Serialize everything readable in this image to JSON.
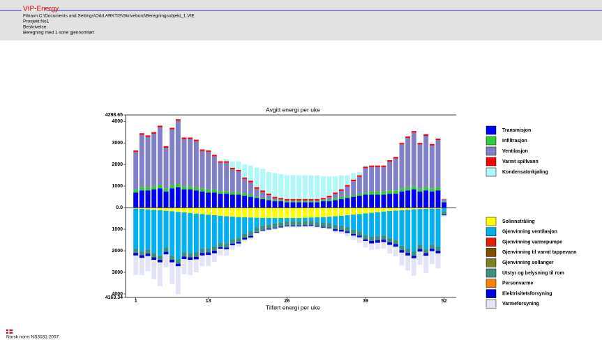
{
  "header": {
    "logo": "VIP-Energy",
    "lines": [
      "Filnavn:C:\\Documents and Settings\\Odd.ARKTIS\\Skrivebord\\Beregningsobjekt_1.VIE",
      "Prosjekt:No1",
      "Beskrivelse:",
      "Beregning med 1 sone gjennomført"
    ]
  },
  "chart_data": {
    "type": "bar",
    "title": "Avgitt energi per uke",
    "x_label": "Tilført energi per uke",
    "x": [
      1,
      2,
      3,
      4,
      5,
      6,
      7,
      8,
      9,
      10,
      11,
      12,
      13,
      14,
      15,
      16,
      17,
      18,
      19,
      20,
      21,
      22,
      23,
      24,
      25,
      26,
      27,
      28,
      29,
      30,
      31,
      32,
      33,
      34,
      35,
      36,
      37,
      38,
      39,
      40,
      41,
      42,
      43,
      44,
      45,
      46,
      47,
      48,
      49,
      50,
      51,
      52
    ],
    "xlim": [
      0,
      54
    ],
    "xticks": [
      1,
      13,
      26,
      39,
      52
    ],
    "ylim": [
      -4163.34,
      4298.65
    ],
    "yticks": [
      4298.65,
      4000,
      3000,
      2000,
      1000,
      {
        "value": 0,
        "label": "0.0"
      },
      {
        "value": -1000,
        "label": "1000"
      },
      {
        "value": -2000,
        "label": "2000"
      },
      {
        "value": -3000,
        "label": "3000"
      },
      {
        "value": -4000,
        "label": "4000"
      },
      {
        "value": -4163.34,
        "label": "4163.34"
      }
    ],
    "series": [
      {
        "name": "Transmisjon",
        "color": "#0000ff",
        "stack": "above",
        "values": [
          700,
          800,
          800,
          850,
          900,
          750,
          900,
          950,
          850,
          850,
          800,
          750,
          700,
          700,
          650,
          650,
          600,
          600,
          550,
          500,
          450,
          400,
          350,
          300,
          300,
          250,
          250,
          250,
          250,
          250,
          250,
          300,
          300,
          350,
          400,
          450,
          500,
          550,
          600,
          600,
          600,
          600,
          650,
          650,
          750,
          800,
          850,
          750,
          800,
          750,
          800,
          250
        ]
      },
      {
        "name": "Infiltrasjon",
        "color": "#33cc33",
        "stack": "above",
        "values": [
          150,
          150,
          150,
          150,
          150,
          150,
          150,
          150,
          150,
          150,
          150,
          150,
          150,
          150,
          120,
          120,
          120,
          120,
          120,
          120,
          60,
          60,
          60,
          60,
          60,
          60,
          60,
          60,
          60,
          60,
          60,
          60,
          60,
          100,
          100,
          100,
          100,
          100,
          100,
          150,
          150,
          150,
          150,
          150,
          150,
          150,
          150,
          150,
          150,
          150,
          150,
          50
        ]
      },
      {
        "name": "Ventilasjon",
        "color": "#8080c8",
        "stack": "above",
        "values": [
          1730,
          2430,
          2330,
          2430,
          2680,
          1880,
          2580,
          2930,
          2180,
          2180,
          2130,
          1730,
          1730,
          1530,
          1310,
          1310,
          1060,
          960,
          660,
          560,
          370,
          270,
          170,
          70,
          20,
          20,
          20,
          20,
          20,
          20,
          20,
          20,
          120,
          180,
          280,
          430,
          630,
          780,
          1130,
          1130,
          1130,
          1130,
          1330,
          1480,
          2030,
          2280,
          2480,
          2030,
          2380,
          1980,
          2180,
          80
        ]
      },
      {
        "name": "Varmt spillvann",
        "color": "#ff0000",
        "stack": "above",
        "values": [
          70,
          70,
          70,
          70,
          70,
          70,
          70,
          70,
          70,
          70,
          70,
          70,
          70,
          70,
          70,
          70,
          70,
          70,
          70,
          70,
          70,
          70,
          70,
          70,
          70,
          70,
          70,
          70,
          70,
          70,
          70,
          70,
          70,
          70,
          70,
          70,
          70,
          70,
          70,
          70,
          70,
          70,
          70,
          70,
          70,
          70,
          70,
          70,
          70,
          70,
          70,
          20
        ]
      },
      {
        "name": "Kondensatorkjøling",
        "color": "#b0f8f8",
        "stack": "above",
        "values": [
          0,
          0,
          0,
          0,
          0,
          0,
          0,
          0,
          0,
          0,
          0,
          0,
          0,
          0,
          0,
          100,
          300,
          400,
          600,
          700,
          900,
          1000,
          1000,
          1100,
          1100,
          1100,
          1100,
          1100,
          1100,
          1100,
          1100,
          1000,
          900,
          750,
          650,
          450,
          300,
          150,
          50,
          0,
          0,
          0,
          0,
          0,
          0,
          0,
          0,
          0,
          0,
          0,
          0,
          0
        ]
      },
      {
        "name": "Solinnstråling",
        "color": "#ffff00",
        "stack": "below",
        "values": [
          -50,
          -60,
          -80,
          -100,
          -120,
          -150,
          -170,
          -200,
          -220,
          -250,
          -280,
          -300,
          -330,
          -350,
          -380,
          -400,
          -420,
          -440,
          -450,
          -460,
          -470,
          -480,
          -480,
          -480,
          -480,
          -480,
          -480,
          -480,
          -470,
          -460,
          -450,
          -440,
          -420,
          -400,
          -380,
          -350,
          -320,
          -300,
          -270,
          -240,
          -210,
          -180,
          -160,
          -140,
          -120,
          -100,
          -80,
          -70,
          -60,
          -50,
          -50,
          -20
        ]
      },
      {
        "name": "Gjenvinning ventilasjon",
        "color": "#00b0f0",
        "stack": "below",
        "values": [
          -1850,
          -1950,
          -1850,
          -2000,
          -2100,
          -1700,
          -2050,
          -2200,
          -1850,
          -1850,
          -1800,
          -1600,
          -1550,
          -1450,
          -1250,
          -1250,
          -1050,
          -950,
          -750,
          -650,
          -450,
          -350,
          -300,
          -250,
          -200,
          -150,
          -150,
          -150,
          -150,
          -150,
          -200,
          -250,
          -300,
          -400,
          -450,
          -550,
          -700,
          -800,
          -1000,
          -1100,
          -1100,
          -1100,
          -1250,
          -1350,
          -1650,
          -1800,
          -1950,
          -1650,
          -1850,
          -1650,
          -1750,
          -150
        ]
      },
      {
        "name": "Gjenvinning varmepumpe",
        "color": "#e02000",
        "stack": "below",
        "values": [
          0,
          0,
          0,
          0,
          0,
          0,
          0,
          0,
          0,
          0,
          0,
          0,
          0,
          0,
          0,
          0,
          0,
          0,
          0,
          0,
          0,
          0,
          0,
          0,
          0,
          0,
          0,
          0,
          0,
          0,
          0,
          0,
          0,
          0,
          0,
          0,
          0,
          0,
          0,
          0,
          0,
          0,
          0,
          0,
          0,
          0,
          0,
          0,
          0,
          0,
          0,
          0
        ]
      },
      {
        "name": "Gjenvinning til varmt tappevann",
        "color": "#805000",
        "stack": "below",
        "values": [
          0,
          0,
          0,
          0,
          0,
          0,
          0,
          0,
          0,
          0,
          0,
          0,
          0,
          0,
          0,
          0,
          0,
          0,
          0,
          0,
          0,
          0,
          0,
          0,
          0,
          0,
          0,
          0,
          0,
          0,
          0,
          0,
          0,
          0,
          0,
          0,
          0,
          0,
          0,
          0,
          0,
          0,
          0,
          0,
          0,
          0,
          0,
          0,
          0,
          0,
          0,
          0
        ]
      },
      {
        "name": "Gjenvinning sollanger",
        "color": "#808020",
        "stack": "below",
        "values": [
          0,
          0,
          0,
          0,
          0,
          0,
          0,
          0,
          0,
          0,
          0,
          0,
          0,
          0,
          0,
          0,
          0,
          0,
          0,
          0,
          0,
          0,
          0,
          0,
          0,
          0,
          0,
          0,
          0,
          0,
          0,
          0,
          0,
          0,
          0,
          0,
          0,
          0,
          0,
          0,
          0,
          0,
          0,
          0,
          0,
          0,
          0,
          0,
          0,
          0,
          0,
          0
        ]
      },
      {
        "name": "Utstyr og belysning til rom",
        "color": "#3c9080",
        "stack": "below",
        "values": [
          -200,
          -200,
          -200,
          -200,
          -200,
          -200,
          -200,
          -200,
          -200,
          -200,
          -200,
          -200,
          -200,
          -200,
          -200,
          -200,
          -200,
          -200,
          -200,
          -200,
          -200,
          -200,
          -200,
          -200,
          -200,
          -200,
          -200,
          -200,
          -200,
          -200,
          -200,
          -200,
          -200,
          -200,
          -200,
          -200,
          -200,
          -200,
          -200,
          -200,
          -200,
          -200,
          -200,
          -200,
          -200,
          -200,
          -200,
          -200,
          -200,
          -200,
          -200,
          -150
        ]
      },
      {
        "name": "Personvarme",
        "color": "#ff8000",
        "stack": "below",
        "values": [
          0,
          0,
          0,
          0,
          0,
          0,
          0,
          0,
          0,
          0,
          0,
          0,
          0,
          0,
          0,
          0,
          0,
          0,
          0,
          0,
          0,
          0,
          0,
          0,
          0,
          0,
          0,
          0,
          0,
          0,
          0,
          0,
          0,
          0,
          0,
          0,
          0,
          0,
          0,
          0,
          0,
          0,
          0,
          0,
          0,
          0,
          0,
          0,
          0,
          0,
          0,
          0
        ]
      },
      {
        "name": "Elektrisitetsforsyning",
        "color": "#0000e0",
        "stack": "below",
        "values": [
          -120,
          -120,
          -120,
          -120,
          -120,
          -120,
          -120,
          -120,
          -120,
          -120,
          -120,
          -120,
          -120,
          -120,
          -80,
          -80,
          -80,
          -80,
          -80,
          -80,
          -40,
          -40,
          -40,
          -40,
          -40,
          -40,
          -40,
          -40,
          -40,
          -40,
          -40,
          -40,
          -40,
          -80,
          -80,
          -80,
          -80,
          -80,
          -80,
          -120,
          -120,
          -120,
          -120,
          -120,
          -120,
          -120,
          -120,
          -120,
          -120,
          -120,
          -120,
          -40
        ]
      },
      {
        "name": "Varmeforsyning",
        "color": "#e4e4f8",
        "stack": "below",
        "values": [
          -900,
          -800,
          -700,
          -900,
          -1100,
          -600,
          -1000,
          -1300,
          -700,
          -700,
          -600,
          -500,
          -500,
          -400,
          -300,
          -300,
          -200,
          -150,
          -100,
          -80,
          -50,
          -50,
          -50,
          -50,
          -50,
          -50,
          -50,
          -50,
          -50,
          -50,
          -50,
          -50,
          -50,
          -80,
          -100,
          -150,
          -200,
          -250,
          -300,
          -300,
          -300,
          -300,
          -400,
          -450,
          -600,
          -700,
          -800,
          -600,
          -800,
          -600,
          -700,
          -50
        ]
      }
    ]
  },
  "footer": {
    "text": "Norsk norm NS3031:2007"
  }
}
